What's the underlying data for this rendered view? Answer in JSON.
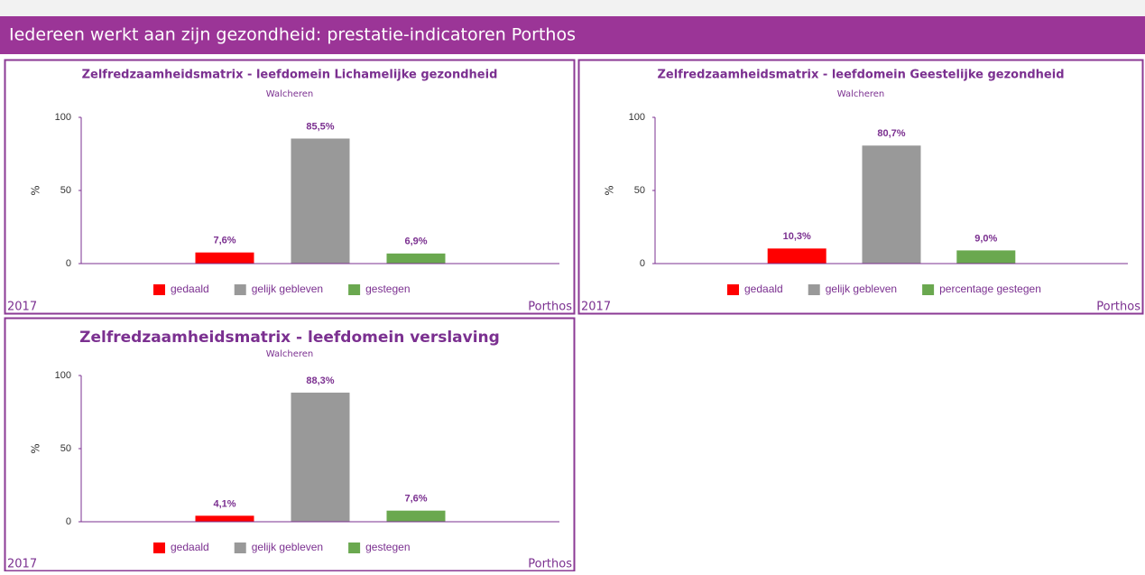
{
  "header": {
    "title": "Iedereen werkt aan zijn gezondheid: prestatie-indicatoren Porthos"
  },
  "chart_data": [
    {
      "type": "bar",
      "title": "Zelfredzaamheidsmatrix - leefdomein Lichamelijke gezondheid",
      "subtitle": "Walcheren",
      "ylabel": "%",
      "categories": [
        "gedaald",
        "gelijk gebleven",
        "gestegen"
      ],
      "values": [
        7.6,
        85.5,
        6.9
      ],
      "value_labels": [
        "7,6%",
        "85,5%",
        "6,9%"
      ],
      "colors": [
        "#ff0000",
        "#999999",
        "#6aa84f"
      ],
      "ylim": [
        0,
        100
      ],
      "yticks": [
        0,
        50,
        100
      ],
      "year": "2017",
      "source": "Porthos"
    },
    {
      "type": "bar",
      "title": "Zelfredzaamheidsmatrix - leefdomein Geestelijke gezondheid",
      "subtitle": "Walcheren",
      "ylabel": "%",
      "categories": [
        "gedaald",
        "gelijk gebleven",
        "percentage gestegen"
      ],
      "values": [
        10.3,
        80.7,
        9.0
      ],
      "value_labels": [
        "10,3%",
        "80,7%",
        "9,0%"
      ],
      "colors": [
        "#ff0000",
        "#999999",
        "#6aa84f"
      ],
      "ylim": [
        0,
        100
      ],
      "yticks": [
        0,
        50,
        100
      ],
      "year": "2017",
      "source": "Porthos"
    },
    {
      "type": "bar",
      "title": "Zelfredzaamheidsmatrix - leefdomein verslaving",
      "subtitle": "Walcheren",
      "ylabel": "%",
      "categories": [
        "gedaald",
        "gelijk gebleven",
        "gestegen"
      ],
      "values": [
        4.1,
        88.3,
        7.6
      ],
      "value_labels": [
        "4,1%",
        "88,3%",
        "7,6%"
      ],
      "colors": [
        "#ff0000",
        "#999999",
        "#6aa84f"
      ],
      "ylim": [
        0,
        100
      ],
      "yticks": [
        0,
        50,
        100
      ],
      "year": "2017",
      "source": "Porthos"
    }
  ]
}
